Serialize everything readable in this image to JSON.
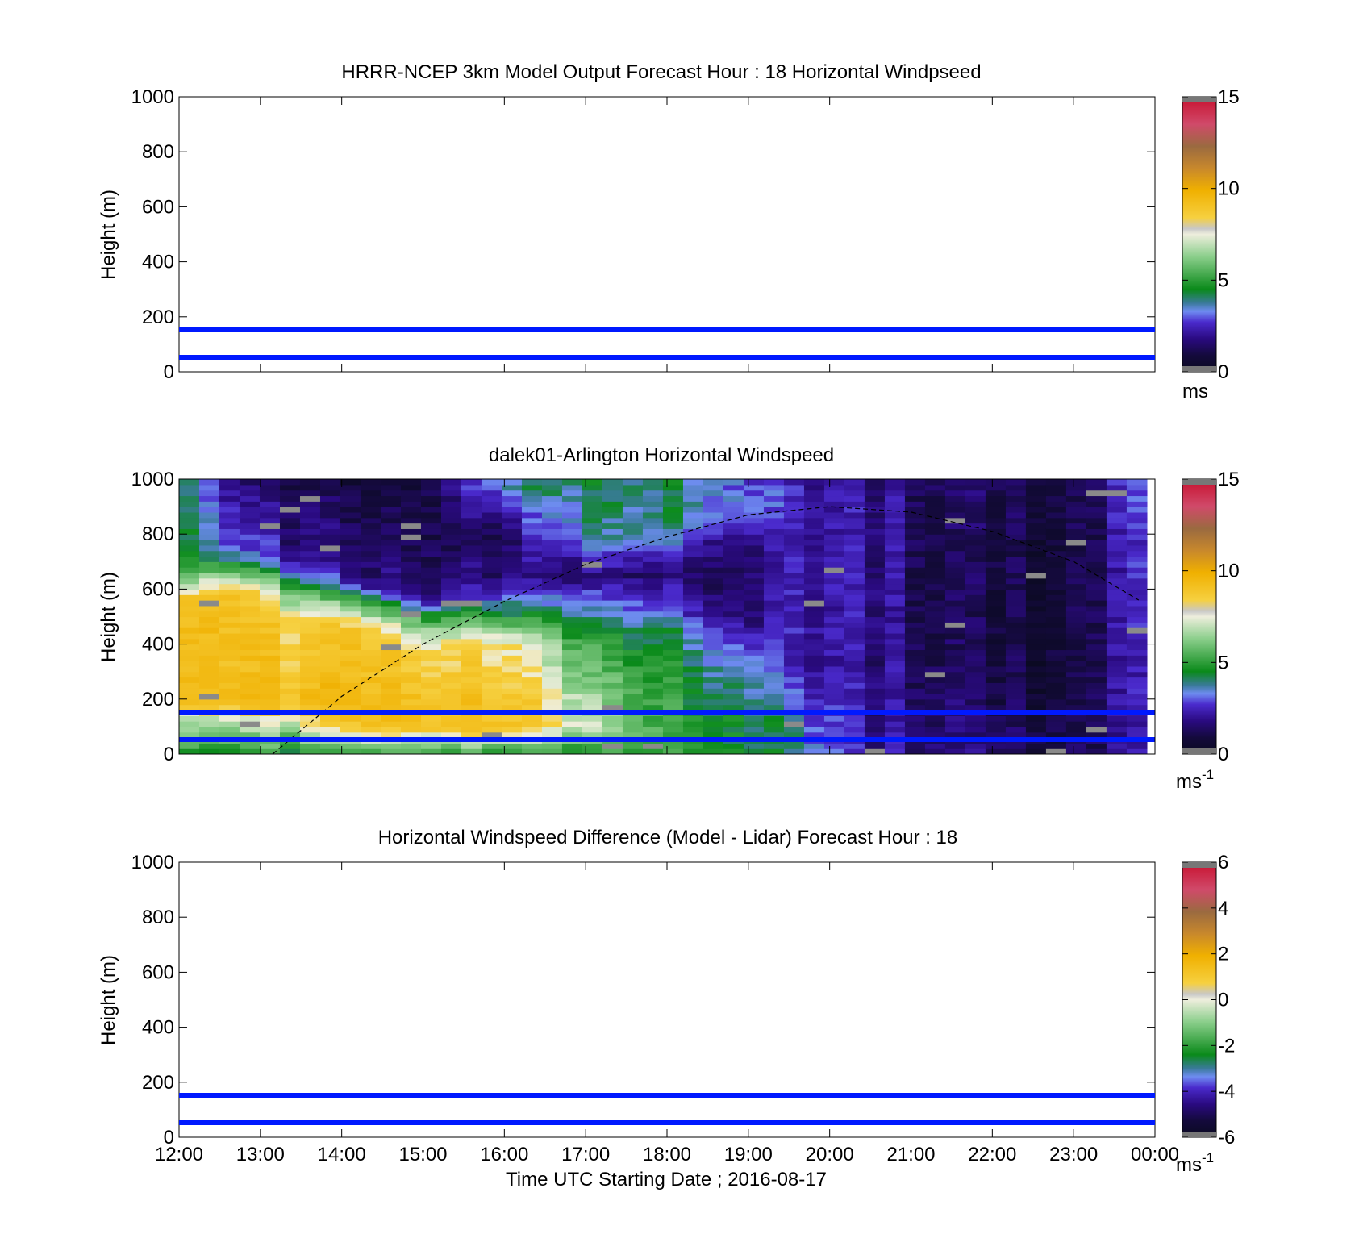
{
  "figure": {
    "xlabel": "Time UTC  Starting Date ; 2016-08-17",
    "x_ticks": [
      "12:00",
      "13:00",
      "14:00",
      "15:00",
      "16:00",
      "17:00",
      "18:00",
      "19:00",
      "20:00",
      "21:00",
      "22:00",
      "23:00",
      "00:00"
    ]
  },
  "chart_data": [
    {
      "type": "heatmap",
      "title": "HRRR-NCEP 3km Model Output   Forecast Hour : 18 Horizontal Windpseed",
      "ylabel": "Height (m)",
      "xlim": [
        12,
        24
      ],
      "ylim": [
        0,
        1000
      ],
      "y_ticks": [
        "0",
        "200",
        "400",
        "600",
        "800",
        "1000"
      ],
      "colorbar": {
        "ticks": [
          "0",
          "5",
          "10",
          "15"
        ],
        "range": [
          0,
          15
        ],
        "unit": "ms"
      },
      "reference_lines_m": [
        50,
        150
      ],
      "data": []
    },
    {
      "type": "heatmap",
      "title": "dalek01-Arlington  Horizontal Windspeed",
      "ylabel": "Height (m)",
      "xlim": [
        12,
        24
      ],
      "ylim": [
        0,
        1000
      ],
      "y_ticks": [
        "0",
        "200",
        "400",
        "600",
        "800",
        "1000"
      ],
      "colorbar": {
        "ticks": [
          "0",
          "5",
          "10",
          "15"
        ],
        "range": [
          0,
          15
        ],
        "unit": "ms",
        "unit_exp": "-1"
      },
      "reference_lines_m": [
        50,
        150
      ],
      "boundary_layer_height": {
        "x_hours": [
          13.15,
          14.0,
          15.0,
          16.0,
          17.0,
          18.0,
          19.0,
          20.0,
          21.0,
          22.0,
          23.0,
          23.8
        ],
        "height_m": [
          0,
          210,
          400,
          555,
          690,
          790,
          870,
          900,
          880,
          810,
          700,
          560
        ]
      },
      "grid": {
        "time_cols": 48,
        "height_rows": 50,
        "profiles": [
          {
            "t": 12.0,
            "h": [
              0,
              120,
              200,
              550,
              620,
              700,
              1000
            ],
            "v": [
              4.5,
              6.5,
              9,
              9,
              6.5,
              4.5,
              4
            ]
          },
          {
            "t": 12.7,
            "h": [
              0,
              120,
              200,
              600,
              680,
              750,
              1000
            ],
            "v": [
              4.5,
              7,
              9,
              9,
              5,
              3,
              1.5
            ]
          },
          {
            "t": 13.5,
            "h": [
              0,
              120,
              200,
              500,
              600,
              700,
              1000
            ],
            "v": [
              4.5,
              7.5,
              9,
              8,
              5,
              2,
              1
            ]
          },
          {
            "t": 14.2,
            "h": [
              0,
              100,
              200,
              450,
              550,
              620,
              1000
            ],
            "v": [
              5,
              9,
              9.5,
              9,
              6,
              2,
              0.8
            ]
          },
          {
            "t": 15.0,
            "h": [
              0,
              100,
              200,
              400,
              500,
              560,
              1000
            ],
            "v": [
              5,
              9,
              9,
              8,
              5,
              1.8,
              0.8
            ]
          },
          {
            "t": 16.0,
            "h": [
              0,
              100,
              200,
              420,
              500,
              650,
              800,
              1000
            ],
            "v": [
              5,
              9,
              9,
              8,
              5,
              1.8,
              1.5,
              4
            ]
          },
          {
            "t": 17.0,
            "h": [
              0,
              100,
              200,
              400,
              550,
              650,
              800,
              1000
            ],
            "v": [
              4.5,
              7,
              6.5,
              5,
              3,
              1.5,
              3.5,
              4
            ]
          },
          {
            "t": 18.0,
            "h": [
              0,
              100,
              300,
              450,
              520,
              650,
              800,
              1000
            ],
            "v": [
              5,
              5,
              4.5,
              4,
              3,
              1.5,
              3.5,
              4
            ]
          },
          {
            "t": 19.0,
            "h": [
              0,
              120,
              250,
              400,
              500,
              750,
              900,
              1000
            ],
            "v": [
              4.5,
              4.5,
              4,
              3,
              1.5,
              1.5,
              3.5,
              3
            ]
          },
          {
            "t": 19.6,
            "h": [
              0,
              150,
              300,
              1000
            ],
            "v": [
              3.5,
              3,
              2,
              2
            ]
          },
          {
            "t": 20.5,
            "h": [
              0,
              1000
            ],
            "v": [
              2,
              2
            ]
          },
          {
            "t": 21.5,
            "h": [
              0,
              500,
              1000
            ],
            "v": [
              1.8,
              1.2,
              1.5
            ]
          },
          {
            "t": 22.5,
            "h": [
              0,
              300,
              1000
            ],
            "v": [
              1.2,
              0.8,
              1
            ]
          },
          {
            "t": 23.3,
            "h": [
              0,
              1000
            ],
            "v": [
              1.5,
              1.5
            ]
          },
          {
            "t": 23.85,
            "h": [
              0,
              800,
              1000
            ],
            "v": [
              2,
              2.5,
              3
            ]
          }
        ]
      }
    },
    {
      "type": "heatmap",
      "title": "Horizontal Windspeed Difference (Model - Lidar) Forecast Hour : 18",
      "ylabel": "Height (m)",
      "xlim": [
        12,
        24
      ],
      "ylim": [
        0,
        1000
      ],
      "y_ticks": [
        "0",
        "200",
        "400",
        "600",
        "800",
        "1000"
      ],
      "colorbar": {
        "ticks": [
          "-6",
          "-4",
          "-2",
          "0",
          "2",
          "4",
          "6"
        ],
        "range": [
          -6,
          6
        ],
        "unit": "ms",
        "unit_exp": "-1"
      },
      "reference_lines_m": [
        50,
        150
      ],
      "data": []
    }
  ],
  "colors": {
    "reference_line": "#0019ff",
    "colormap": [
      "#777777",
      "#0a0a33",
      "#2a0a80",
      "#4a2acc",
      "#6e8cf0",
      "#0a8a1a",
      "#8ccf8c",
      "#eeeedd",
      "#f6c400",
      "#e6a020",
      "#9a6a40",
      "#d04a6a",
      "#f03a5a",
      "#777777"
    ]
  }
}
